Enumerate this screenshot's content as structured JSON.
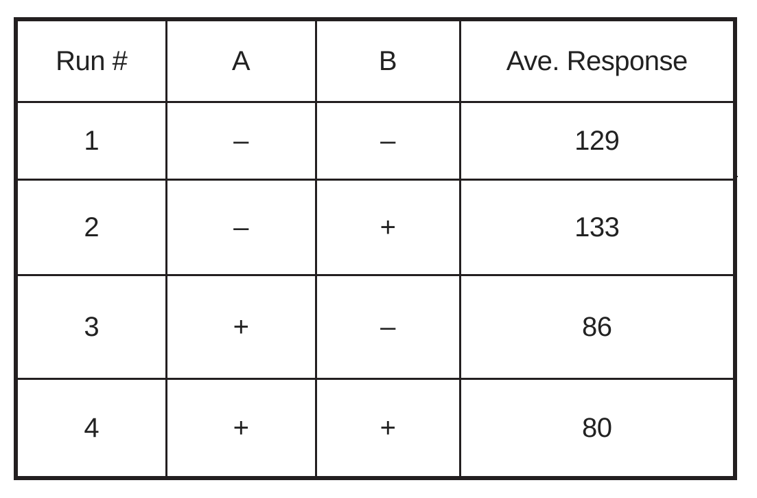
{
  "table": {
    "headers": [
      "Run #",
      "A",
      "B",
      "Ave. Response"
    ],
    "rows": [
      [
        "1",
        "–",
        "–",
        "129"
      ],
      [
        "2",
        "–",
        "+",
        "133"
      ],
      [
        "3",
        "+",
        "–",
        "86"
      ],
      [
        "4",
        "+",
        "+",
        "80"
      ]
    ]
  }
}
